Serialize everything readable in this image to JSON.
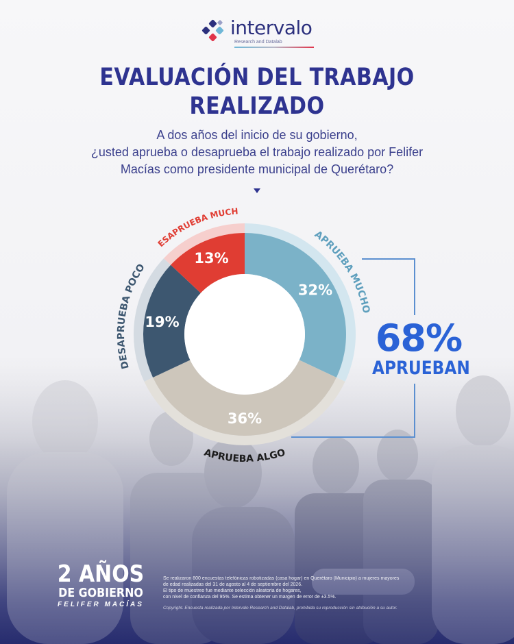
{
  "brand": {
    "name": "intervalo",
    "subtitle": "Research and Datalab"
  },
  "title_line1": "EVALUACIÓN DEL TRABAJO",
  "title_line2": "REALIZADO",
  "question_line1": "A dos años del inicio de su gobierno,",
  "question_line2": "¿usted aprueba o desaprueba el trabajo realizado por Felifer",
  "question_line3": "Macías como presidente municipal de Querétaro?",
  "chart_data": {
    "type": "pie",
    "donut": true,
    "categories": [
      "APRUEBA MUCHO",
      "APRUEBA ALGO",
      "DESAPRUEBA POCO",
      "DESAPRUEBA MUCHO"
    ],
    "values": [
      32,
      36,
      19,
      13
    ],
    "value_labels": [
      "32%",
      "36%",
      "19%",
      "13%"
    ],
    "colors": [
      "#7bb2c8",
      "#cdc6bb",
      "#3d5770",
      "#e03d33"
    ],
    "ring_colors": [
      "#d3e6ef",
      "#e3e0da",
      "#d4dbe2",
      "#f6cfcd"
    ],
    "label_colors": [
      "#5e9fbd",
      "#1c1c1c",
      "#3d5770",
      "#e03d33"
    ],
    "total_value": "68%",
    "total_label": "APRUEBAN",
    "bracket_color": "#5b8fd0"
  },
  "badge": {
    "line1": "2 AÑOS",
    "line2": "DE GOBIERNO",
    "line3": "FELIFER MACÍAS"
  },
  "methodology": [
    "Se realizaron 800 encuestas telefónicas robotizadas (casa hogar) en Querétaro (Municipio) a mujeres mayores",
    "de edad realizadas del 31 de agosto al 4 de septiembre del 2026.",
    "El tipo de muestreo fue mediante selección aleatoria de hogares,",
    "con nivel de confianza del 95%. Se estima obtener un margen de error de ±3.5%."
  ],
  "copyright": "Copyright. Encuesta realizada por Intervalo Research and Datalab, prohibida su reproducción sin atribución a su autor."
}
